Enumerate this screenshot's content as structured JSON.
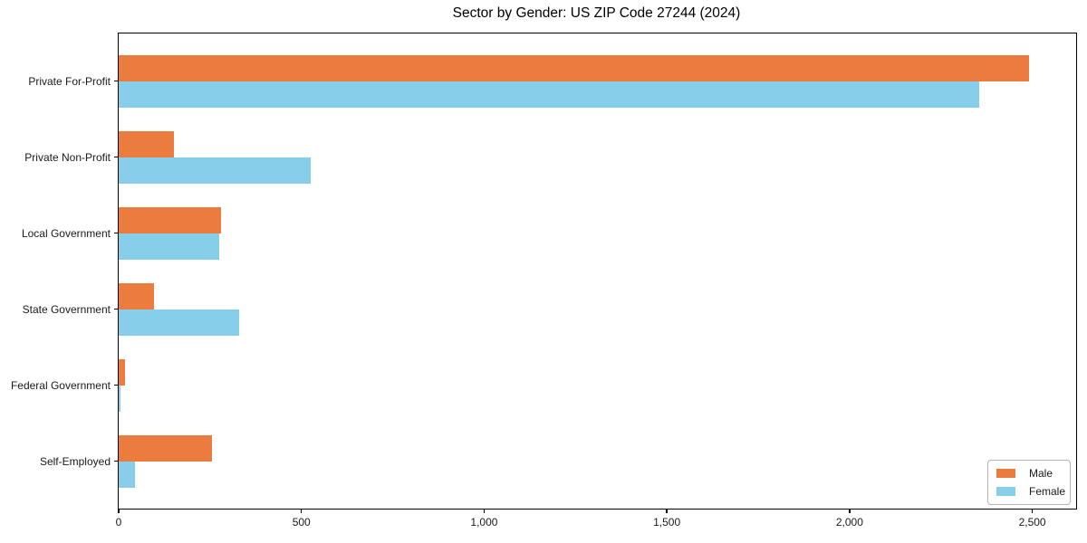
{
  "chart_data": {
    "type": "bar",
    "orientation": "horizontal",
    "title": "Sector by Gender: US ZIP Code 27244 (2024)",
    "categories": [
      "Private For-Profit",
      "Private Non-Profit",
      "Local Government",
      "State Government",
      "Federal Government",
      "Self-Employed"
    ],
    "series": [
      {
        "name": "Male",
        "color": "#ec7c3e",
        "values": [
          2490,
          150,
          280,
          97,
          17,
          255
        ]
      },
      {
        "name": "Female",
        "color": "#87ceeb",
        "values": [
          2355,
          525,
          274,
          330,
          4,
          45
        ]
      }
    ],
    "xlabel": "",
    "ylabel": "",
    "xlim": [
      0,
      2620
    ],
    "x_ticks": [
      0,
      500,
      1000,
      1500,
      2000,
      2500
    ],
    "x_tick_labels": [
      "0",
      "500",
      "1,000",
      "1,500",
      "2,000",
      "2,500"
    ],
    "legend_position": "lower right",
    "grid": false,
    "colors": {
      "axis": "#000000",
      "text": "#1a1a1a",
      "background": "#ffffff"
    }
  }
}
